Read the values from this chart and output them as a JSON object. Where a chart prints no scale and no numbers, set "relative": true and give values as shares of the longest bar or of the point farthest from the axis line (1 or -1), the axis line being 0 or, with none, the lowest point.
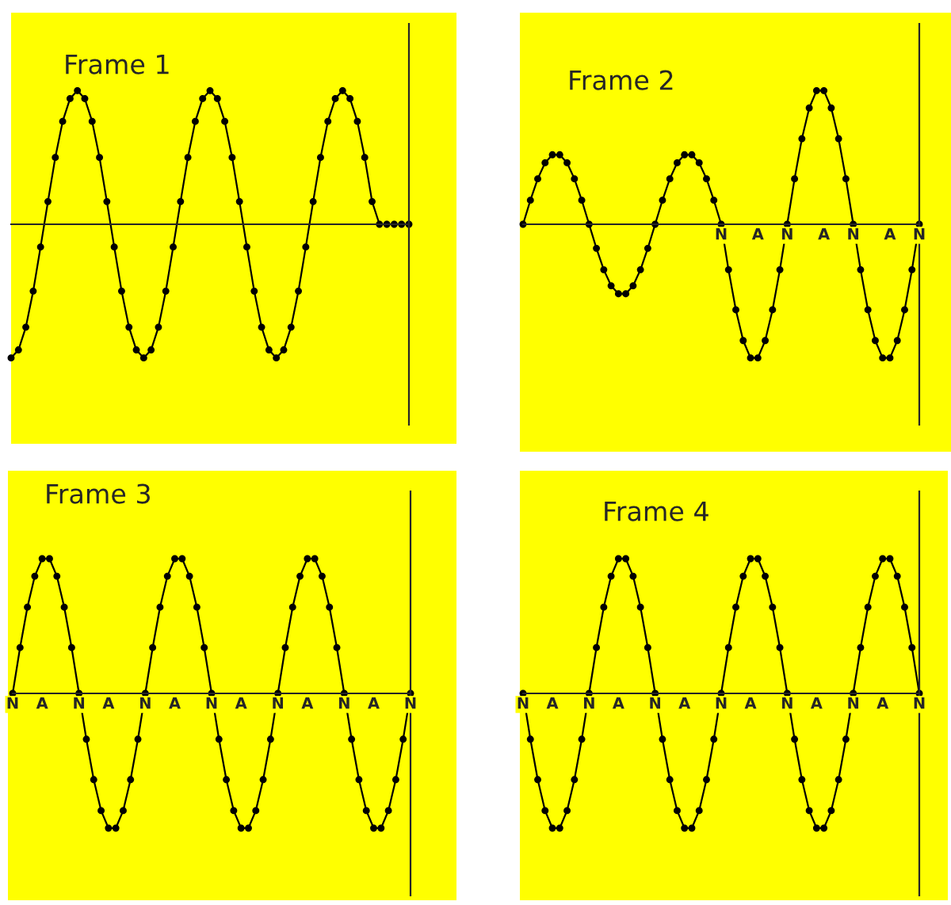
{
  "chart_data": [
    {
      "type": "line",
      "title": "Frame 1",
      "relative": true,
      "tick_labels": false,
      "marker": "circle",
      "line_style": "solid",
      "color": "#000000",
      "categories": [
        null,
        null,
        null,
        null,
        null,
        null,
        null,
        null,
        null,
        null,
        null,
        null,
        null,
        null,
        null,
        null,
        null,
        null,
        null,
        null,
        null,
        null,
        null,
        null,
        null,
        null,
        null,
        null,
        null,
        null,
        null,
        null,
        null,
        null,
        null,
        null,
        null,
        null,
        null,
        null,
        null,
        null,
        null,
        null,
        null,
        null,
        null,
        null,
        null,
        null,
        null,
        null,
        null,
        null,
        null
      ],
      "values": [
        -1,
        -0.94,
        -0.77,
        -0.5,
        -0.17,
        0.17,
        0.5,
        0.77,
        0.94,
        1,
        0.94,
        0.77,
        0.5,
        0.17,
        -0.17,
        -0.5,
        -0.77,
        -0.94,
        -1,
        -0.94,
        -0.77,
        -0.5,
        -0.17,
        0.17,
        0.5,
        0.77,
        0.94,
        1,
        0.94,
        0.77,
        0.5,
        0.17,
        -0.17,
        -0.5,
        -0.77,
        -0.94,
        -1,
        -0.94,
        -0.77,
        -0.5,
        -0.17,
        0.17,
        0.5,
        0.77,
        0.94,
        1,
        0.94,
        0.77,
        0.5,
        0.17,
        0,
        0,
        0,
        0,
        0
      ]
    },
    {
      "type": "line",
      "title": "Frame 2",
      "relative": true,
      "tick_labels": "x",
      "marker": "circle",
      "line_style": "solid",
      "color": "#000000",
      "categories": [
        null,
        null,
        null,
        null,
        null,
        null,
        null,
        null,
        null,
        null,
        null,
        null,
        null,
        null,
        null,
        null,
        null,
        null,
        null,
        null,
        null,
        null,
        null,
        null,
        null,
        null,
        null,
        "N",
        null,
        null,
        null,
        null,
        "A",
        null,
        null,
        null,
        "N",
        null,
        null,
        null,
        null,
        "A",
        null,
        null,
        null,
        "N",
        null,
        null,
        null,
        null,
        "A",
        null,
        null,
        null,
        "N"
      ],
      "values": [
        0,
        0.18,
        0.34,
        0.46,
        0.52,
        0.52,
        0.46,
        0.34,
        0.18,
        0,
        -0.18,
        -0.34,
        -0.46,
        -0.52,
        -0.52,
        -0.46,
        -0.34,
        -0.18,
        0,
        0.18,
        0.34,
        0.46,
        0.52,
        0.52,
        0.46,
        0.34,
        0.18,
        0,
        -0.34,
        -0.64,
        -0.87,
        -1,
        -1,
        -0.87,
        -0.64,
        -0.34,
        0,
        0.34,
        0.64,
        0.87,
        1,
        1,
        0.87,
        0.64,
        0.34,
        0,
        -0.34,
        -0.64,
        -0.87,
        -1,
        -1,
        -0.87,
        -0.64,
        -0.34,
        0
      ]
    },
    {
      "type": "line",
      "title": "Frame 3",
      "relative": true,
      "tick_labels": "x",
      "marker": "circle",
      "line_style": "solid",
      "color": "#000000",
      "categories": [
        "N",
        null,
        null,
        null,
        "A",
        null,
        null,
        null,
        null,
        "N",
        null,
        null,
        null,
        "A",
        null,
        null,
        null,
        null,
        "N",
        null,
        null,
        null,
        "A",
        null,
        null,
        null,
        null,
        "N",
        null,
        null,
        null,
        "A",
        null,
        null,
        null,
        null,
        "N",
        null,
        null,
        null,
        "A",
        null,
        null,
        null,
        null,
        "N",
        null,
        null,
        null,
        "A",
        null,
        null,
        null,
        null,
        "N"
      ],
      "values": [
        0,
        0.34,
        0.64,
        0.87,
        1,
        1,
        0.87,
        0.64,
        0.34,
        0,
        -0.34,
        -0.64,
        -0.87,
        -1,
        -1,
        -0.87,
        -0.64,
        -0.34,
        0,
        0.34,
        0.64,
        0.87,
        1,
        1,
        0.87,
        0.64,
        0.34,
        0,
        -0.34,
        -0.64,
        -0.87,
        -1,
        -1,
        -0.87,
        -0.64,
        -0.34,
        0,
        0.34,
        0.64,
        0.87,
        1,
        1,
        0.87,
        0.64,
        0.34,
        0,
        -0.34,
        -0.64,
        -0.87,
        -1,
        -1,
        -0.87,
        -0.64,
        -0.34,
        0
      ]
    },
    {
      "type": "line",
      "title": "Frame 4",
      "relative": true,
      "tick_labels": "x",
      "marker": "circle",
      "line_style": "solid",
      "color": "#000000",
      "categories": [
        "N",
        null,
        null,
        null,
        "A",
        null,
        null,
        null,
        null,
        "N",
        null,
        null,
        null,
        "A",
        null,
        null,
        null,
        null,
        "N",
        null,
        null,
        null,
        "A",
        null,
        null,
        null,
        null,
        "N",
        null,
        null,
        null,
        "A",
        null,
        null,
        null,
        null,
        "N",
        null,
        null,
        null,
        "A",
        null,
        null,
        null,
        null,
        "N",
        null,
        null,
        null,
        "A",
        null,
        null,
        null,
        null,
        "N"
      ],
      "values": [
        0,
        -0.34,
        -0.64,
        -0.87,
        -1,
        -1,
        -0.87,
        -0.64,
        -0.34,
        0,
        0.34,
        0.64,
        0.87,
        1,
        1,
        0.87,
        0.64,
        0.34,
        0,
        -0.34,
        -0.64,
        -0.87,
        -1,
        -1,
        -0.87,
        -0.64,
        -0.34,
        0,
        0.34,
        0.64,
        0.87,
        1,
        1,
        0.87,
        0.64,
        0.34,
        0,
        -0.34,
        -0.64,
        -0.87,
        -1,
        -1,
        -0.87,
        -0.64,
        -0.34,
        0,
        0.34,
        0.64,
        0.87,
        1,
        1,
        0.87,
        0.64,
        0.34,
        0
      ]
    }
  ]
}
